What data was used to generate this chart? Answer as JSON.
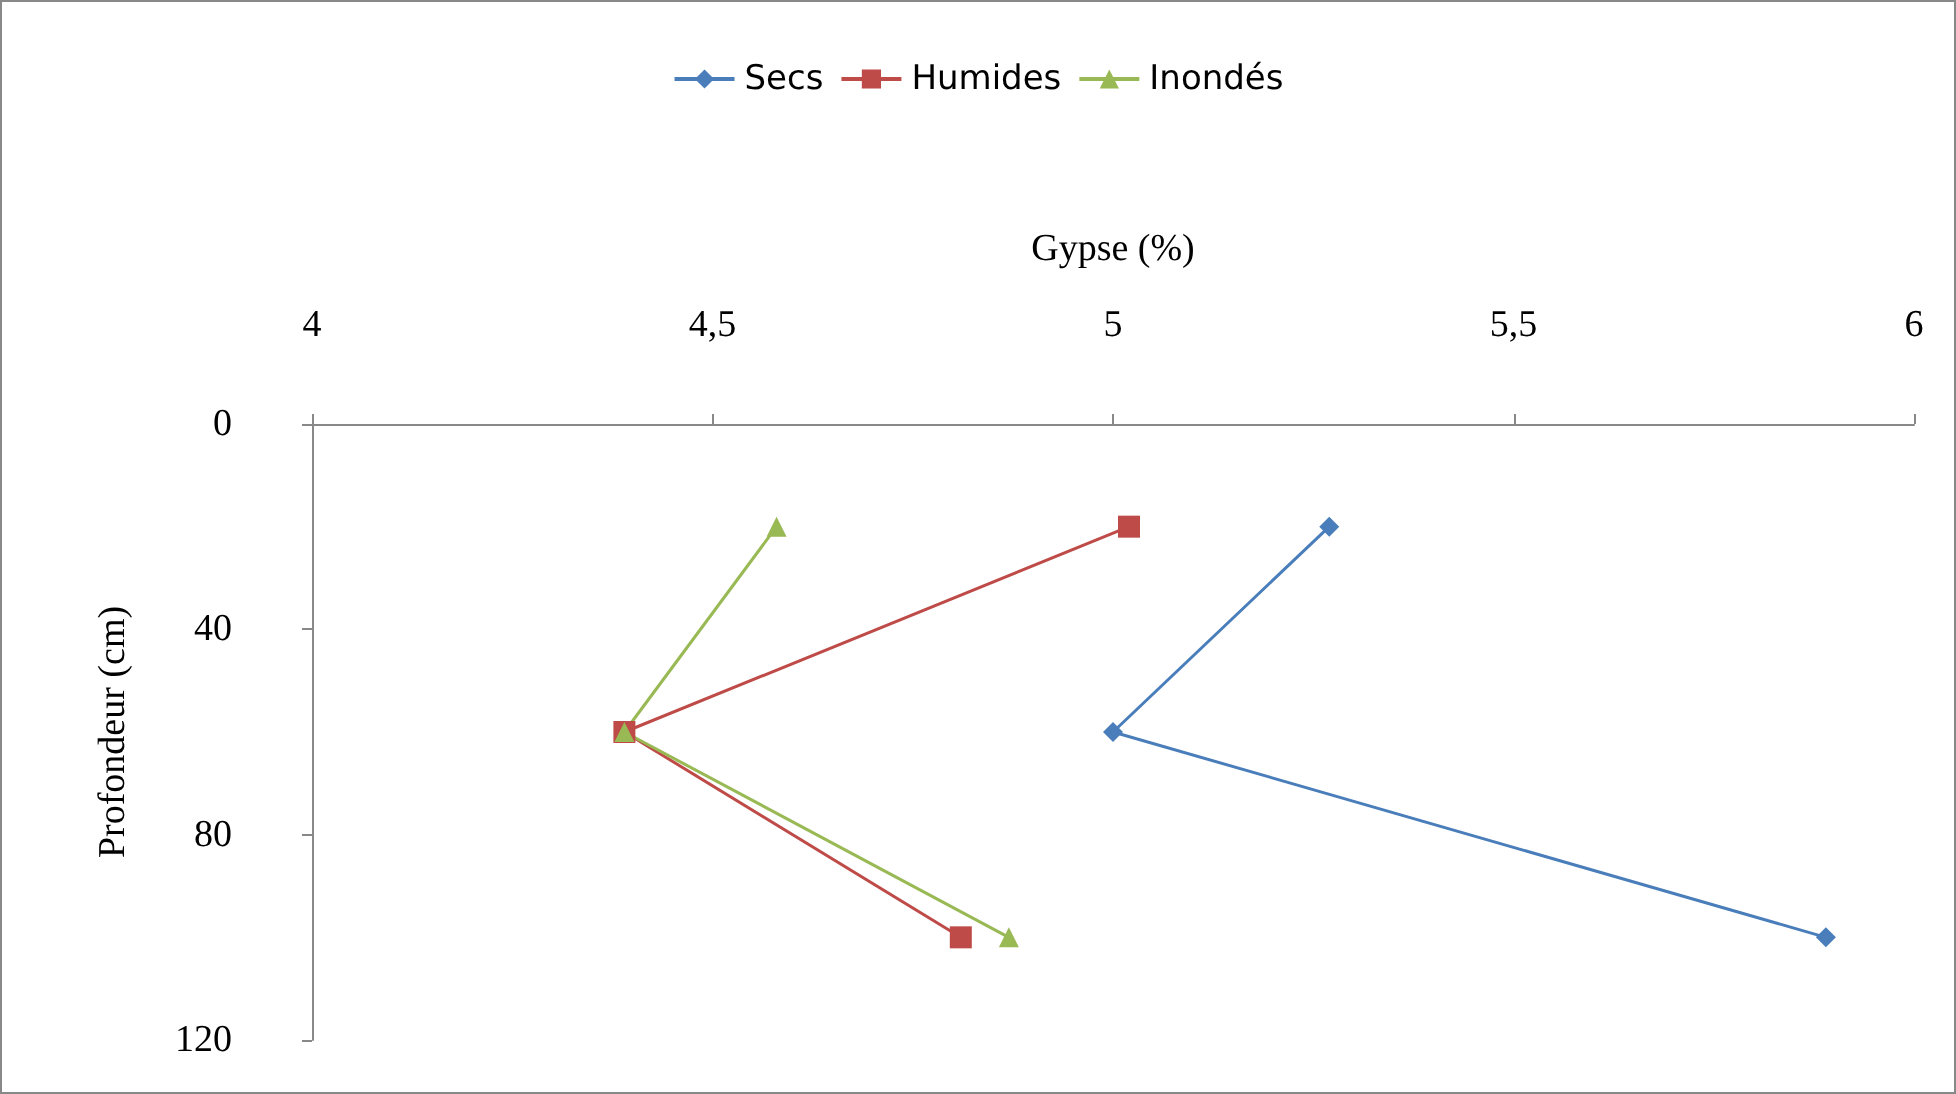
{
  "chart_data": {
    "type": "line",
    "xlabel": "Gypse (%)",
    "ylabel": "Profondeur (cm)",
    "xlim": [
      4,
      6
    ],
    "xticks": [
      4,
      {
        "value": 4.5,
        "label": "4,5"
      },
      5,
      {
        "value": 5.5,
        "label": "5,5"
      },
      6
    ],
    "ylim": [
      120,
      0
    ],
    "yticks": [
      0,
      40,
      80,
      120
    ],
    "grid": false,
    "legend": "top",
    "series": [
      {
        "name": "Secs",
        "color": "#4a7ebb",
        "marker": "diamond",
        "x": [
          5.27,
          5.0,
          5.89
        ],
        "values": [
          20,
          60,
          100
        ]
      },
      {
        "name": "Humides",
        "color": "#be4b48",
        "marker": "square",
        "x": [
          5.02,
          4.39,
          4.81
        ],
        "values": [
          20,
          60,
          100
        ]
      },
      {
        "name": "Inondés",
        "color": "#98b954",
        "marker": "triangle",
        "x": [
          4.58,
          4.39,
          4.87
        ],
        "values": [
          20,
          60,
          100
        ]
      }
    ]
  }
}
